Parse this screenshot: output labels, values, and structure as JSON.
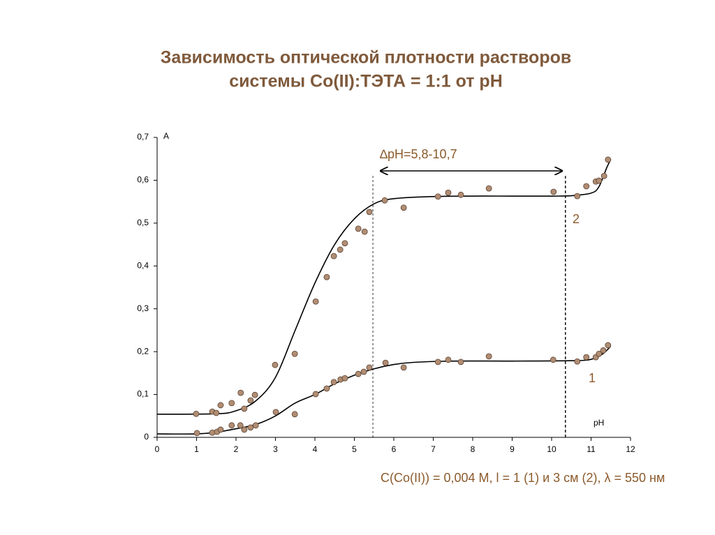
{
  "chart_data": {
    "type": "scatter",
    "title": [
      "Зависимость оптической плотности растворов",
      "системы Co(II):ТЭТА = 1:1 от рН"
    ],
    "ylabel": "A",
    "xlabel": "pH",
    "caption": "C(Co(II)) = 0,004 M, l = 1 (1) и 3 см (2), λ = 550 нм",
    "range_label": "∆pH=5,8-10,7",
    "xlim": [
      0,
      12
    ],
    "ylim": [
      0,
      0.7
    ],
    "xticks": [
      0,
      1,
      2,
      3,
      4,
      5,
      6,
      7,
      8,
      9,
      10,
      11,
      12
    ],
    "yticks": [
      0,
      {
        "value": 0.1,
        "label": "0,1"
      },
      {
        "value": 0.2,
        "label": "0,2"
      },
      {
        "value": 0.3,
        "label": "0,3"
      },
      {
        "value": 0.4,
        "label": "0,4"
      },
      {
        "value": 0.5,
        "label": "0,5"
      },
      {
        "value": 0.6,
        "label": "0,6"
      },
      {
        "value": 0.7,
        "label": "0,7"
      }
    ],
    "vlines": [
      5.47,
      10.35
    ],
    "point_color": "#b08d73",
    "curve_color": "#000000",
    "series": [
      {
        "name": "2",
        "x": [
          0.99,
          1.4,
          1.5,
          1.61,
          1.89,
          2.12,
          2.21,
          2.37,
          2.48,
          2.99,
          3.49,
          4.02,
          4.3,
          4.48,
          4.64,
          4.76,
          5.1,
          5.26,
          5.38,
          5.77,
          6.25,
          7.12,
          7.38,
          7.7,
          8.41,
          10.05,
          10.65,
          10.88,
          11.12,
          11.2,
          11.33,
          11.43
        ],
        "values": [
          0.055,
          0.06,
          0.057,
          0.075,
          0.08,
          0.104,
          0.067,
          0.086,
          0.099,
          0.169,
          0.195,
          0.317,
          0.374,
          0.423,
          0.438,
          0.453,
          0.487,
          0.48,
          0.526,
          0.553,
          0.536,
          0.562,
          0.571,
          0.566,
          0.581,
          0.573,
          0.563,
          0.586,
          0.597,
          0.599,
          0.61,
          0.648
        ],
        "curve_x": [
          0,
          1.5,
          2.0,
          2.5,
          3.0,
          3.5,
          4.0,
          4.5,
          5.0,
          5.5,
          6.0,
          7.0,
          8.0,
          9.0,
          10.0,
          10.5,
          11.0,
          11.2,
          11.4,
          11.5
        ],
        "curve": [
          0.054,
          0.055,
          0.062,
          0.085,
          0.14,
          0.25,
          0.36,
          0.45,
          0.51,
          0.545,
          0.557,
          0.562,
          0.563,
          0.563,
          0.563,
          0.564,
          0.57,
          0.585,
          0.63,
          0.648
        ]
      },
      {
        "name": "1",
        "x": [
          1.01,
          1.4,
          1.52,
          1.61,
          1.89,
          2.11,
          2.21,
          2.37,
          2.5,
          3.01,
          3.49,
          4.02,
          4.3,
          4.48,
          4.65,
          4.76,
          5.1,
          5.24,
          5.38,
          5.79,
          6.25,
          7.12,
          7.38,
          7.7,
          8.41,
          10.04,
          10.65,
          10.88,
          11.12,
          11.2,
          11.31,
          11.43
        ],
        "values": [
          0.01,
          0.011,
          0.013,
          0.018,
          0.028,
          0.028,
          0.018,
          0.023,
          0.028,
          0.059,
          0.054,
          0.101,
          0.114,
          0.129,
          0.135,
          0.138,
          0.148,
          0.153,
          0.163,
          0.174,
          0.163,
          0.176,
          0.181,
          0.176,
          0.189,
          0.181,
          0.177,
          0.187,
          0.187,
          0.195,
          0.203,
          0.215
        ],
        "curve_x": [
          0,
          1.0,
          1.5,
          2.0,
          2.5,
          3.0,
          3.5,
          4.0,
          4.5,
          5.0,
          5.5,
          6.0,
          6.5,
          7.5,
          9.0,
          10.5,
          11.0,
          11.3,
          11.5
        ],
        "curve": [
          0.008,
          0.008,
          0.012,
          0.02,
          0.03,
          0.05,
          0.08,
          0.1,
          0.125,
          0.145,
          0.16,
          0.17,
          0.175,
          0.178,
          0.178,
          0.179,
          0.182,
          0.195,
          0.213
        ]
      }
    ]
  }
}
